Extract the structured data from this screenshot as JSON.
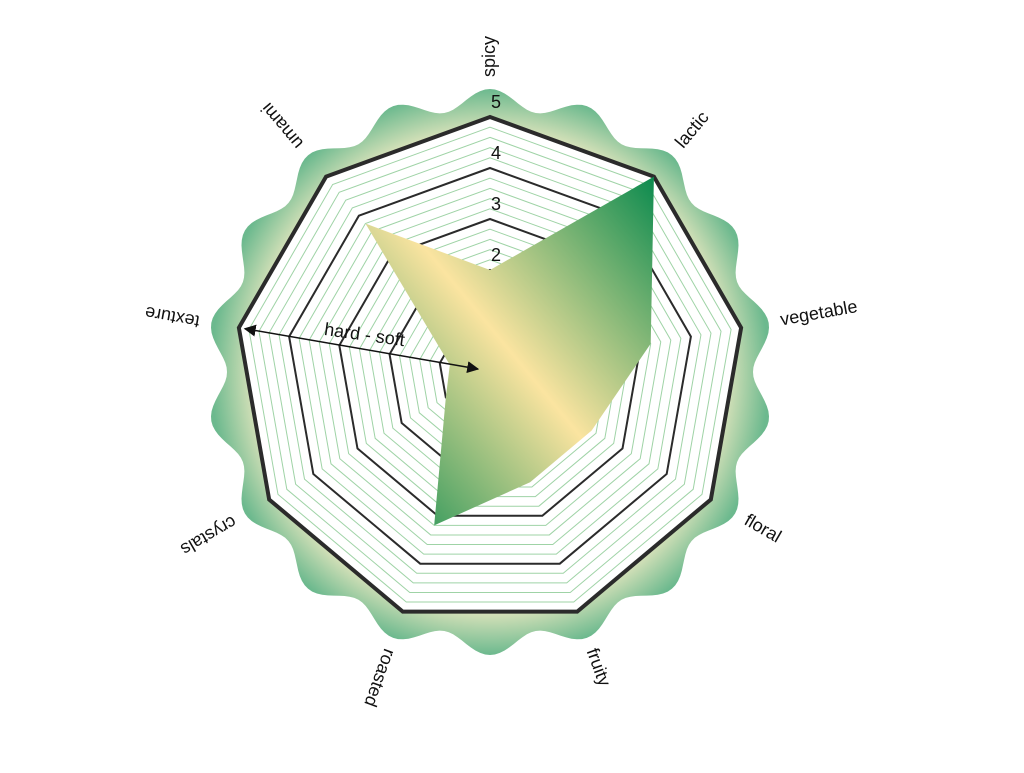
{
  "chart_data": {
    "type": "radar",
    "categories": [
      "spicy",
      "lactic",
      "vegetable",
      "floral",
      "fruity",
      "roasted",
      "crystals",
      "texture",
      "umami"
    ],
    "values": [
      2.0,
      5.0,
      3.2,
      2.3,
      2.3,
      3.2,
      1.0,
      0.8,
      3.8
    ],
    "rlim": [
      0,
      5
    ],
    "rticks": [
      0,
      1,
      2,
      3,
      4,
      5
    ],
    "colors": [
      "#0b8a4e",
      "#fbe4a0"
    ],
    "annotation": "hard - soft"
  }
}
